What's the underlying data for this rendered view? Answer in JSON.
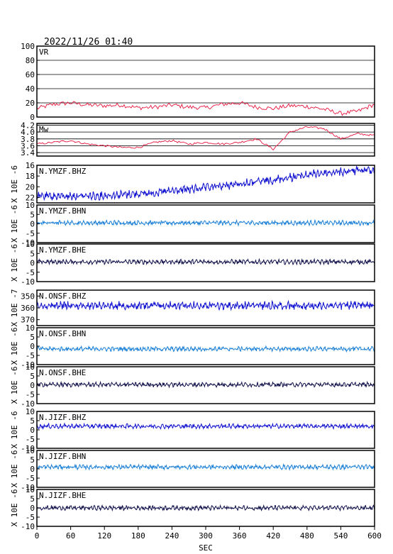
{
  "header": {
    "datetime": "2022/11/26 01:40"
  },
  "x_axis": {
    "label": "SEC",
    "ticks": [
      0,
      60,
      120,
      180,
      240,
      300,
      360,
      420,
      480,
      540,
      600
    ],
    "range": [
      0,
      600
    ]
  },
  "colors": {
    "red": "#e8143c",
    "blue": "#1010d0",
    "lightblue": "#1a7fd6",
    "navy": "#10104a",
    "frame": "#000000"
  },
  "chart_data": [
    {
      "name": "VR",
      "type": "line",
      "label": "VR",
      "yticks": [
        "100",
        "80",
        "60",
        "40",
        "20",
        "0"
      ],
      "ylim": [
        0,
        100
      ],
      "grid": true,
      "color": "red",
      "x": [
        0,
        30,
        60,
        90,
        120,
        150,
        180,
        210,
        240,
        270,
        300,
        330,
        360,
        390,
        420,
        450,
        480,
        510,
        540,
        570,
        600
      ],
      "y": [
        12,
        18,
        20,
        17,
        16,
        17,
        13,
        14,
        17,
        14,
        13,
        18,
        20,
        14,
        12,
        16,
        15,
        11,
        5,
        8,
        18
      ]
    },
    {
      "name": "Mw",
      "type": "line",
      "label": "Mw",
      "yticks": [
        "4.2",
        "4.0",
        "3.8",
        "3.6",
        "3.4"
      ],
      "ylim": [
        3.3,
        4.25
      ],
      "grid": true,
      "color": "red",
      "x": [
        0,
        30,
        60,
        90,
        120,
        150,
        180,
        210,
        240,
        270,
        300,
        330,
        360,
        390,
        420,
        450,
        480,
        510,
        540,
        570,
        600
      ],
      "y": [
        3.65,
        3.7,
        3.75,
        3.65,
        3.6,
        3.55,
        3.55,
        3.7,
        3.75,
        3.65,
        3.7,
        3.65,
        3.7,
        3.8,
        3.5,
        4.0,
        4.15,
        4.1,
        3.8,
        3.95,
        3.9
      ]
    },
    {
      "name": "N.YMZF.BHZ",
      "type": "line",
      "label": "N.YMZF.BHZ",
      "unit": "X 10E -6",
      "yticks": [
        "16",
        "18",
        "20",
        "22"
      ],
      "ylim": [
        16,
        23
      ],
      "reversed": true,
      "color": "blue",
      "x": [
        0,
        100,
        200,
        300,
        400,
        500,
        600
      ],
      "y": [
        21.8,
        21.7,
        21.2,
        20.2,
        19.0,
        17.5,
        16.8
      ]
    },
    {
      "name": "N.YMZF.BHN",
      "type": "line",
      "label": "N.YMZF.BHN",
      "unit": "X 10E -6",
      "yticks": [
        "10",
        "5",
        "0",
        "-5",
        "-10"
      ],
      "ylim": [
        -10,
        10
      ],
      "color": "lightblue",
      "x": [
        0,
        600
      ],
      "y": [
        0.5,
        0.5
      ]
    },
    {
      "name": "N.YMZF.BHE",
      "type": "line",
      "label": "N.YMZF.BHE",
      "unit": "X 10E -6",
      "yticks": [
        "10",
        "5",
        "0",
        "-5",
        "-10"
      ],
      "ylim": [
        -10,
        10
      ],
      "color": "navy",
      "x": [
        0,
        600
      ],
      "y": [
        0.5,
        0.5
      ]
    },
    {
      "name": "N.ONSF.BHZ",
      "type": "line",
      "label": "N.ONSF.BHZ",
      "unit": "X 10E -7",
      "yticks": [
        "350",
        "360",
        "370"
      ],
      "ylim": [
        345,
        375
      ],
      "reversed": true,
      "color": "blue",
      "x": [
        0,
        600
      ],
      "y": [
        358,
        358
      ]
    },
    {
      "name": "N.ONSF.BHN",
      "type": "line",
      "label": "N.ONSF.BHN",
      "unit": "X 10E -6",
      "yticks": [
        "10",
        "5",
        "0",
        "-5",
        "-10"
      ],
      "ylim": [
        -10,
        10
      ],
      "color": "lightblue",
      "x": [
        0,
        600
      ],
      "y": [
        -1.5,
        -1.5
      ]
    },
    {
      "name": "N.ONSF.BHE",
      "type": "line",
      "label": "N.ONSF.BHE",
      "unit": "X 10E -6",
      "yticks": [
        "10",
        "5",
        "0",
        "-5",
        "-10"
      ],
      "ylim": [
        -10,
        10
      ],
      "color": "navy",
      "x": [
        0,
        600
      ],
      "y": [
        0.3,
        0.3
      ]
    },
    {
      "name": "N.JIZF.BHZ",
      "type": "line",
      "label": "N.JIZF.BHZ",
      "unit": "X 10E -6",
      "yticks": [
        "10",
        "5",
        "0",
        "-5",
        "-10"
      ],
      "ylim": [
        -10,
        10
      ],
      "color": "blue",
      "x": [
        0,
        600
      ],
      "y": [
        2.0,
        2.0
      ]
    },
    {
      "name": "N.JIZF.BHN",
      "type": "line",
      "label": "N.JIZF.BHN",
      "unit": "X 10E -6",
      "yticks": [
        "10",
        "5",
        "0",
        "-5",
        "-10"
      ],
      "ylim": [
        -10,
        10
      ],
      "color": "lightblue",
      "x": [
        0,
        600
      ],
      "y": [
        1.0,
        1.0
      ]
    },
    {
      "name": "N.JIZF.BHE",
      "type": "line",
      "label": "N.JIZF.BHE",
      "unit": "X 10E -6",
      "yticks": [
        "10",
        "5",
        "0",
        "-5",
        "-10"
      ],
      "ylim": [
        -10,
        10
      ],
      "color": "navy",
      "x": [
        0,
        600
      ],
      "y": [
        0.0,
        0.0
      ]
    }
  ]
}
